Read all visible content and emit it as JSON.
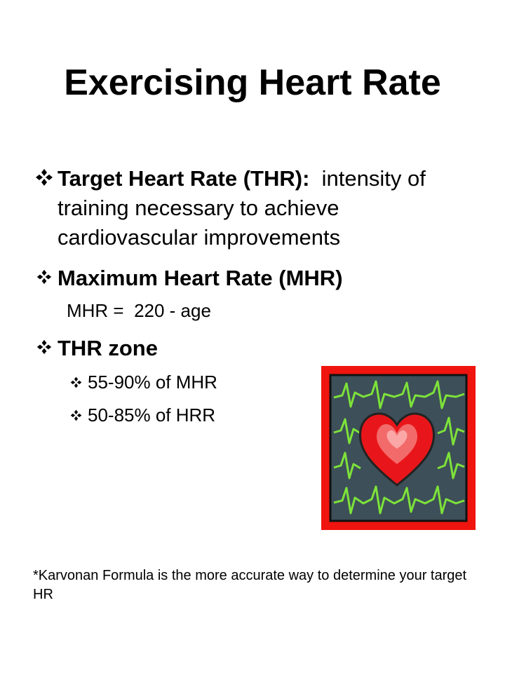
{
  "title": "Exercising Heart Rate",
  "bullets": [
    {
      "term": "Target Heart Rate (THR):",
      "text": "intensity of training necessary to achieve cardiovascular improvements"
    },
    {
      "term": "Maximum Heart Rate (MHR)",
      "note": "MHR =  220 - age"
    },
    {
      "term": "THR zone",
      "sub": [
        "55-90% of MHR",
        "50-85% of HRR"
      ]
    }
  ],
  "footnote": "*Karvonan Formula is the more accurate way to determine your target HR"
}
